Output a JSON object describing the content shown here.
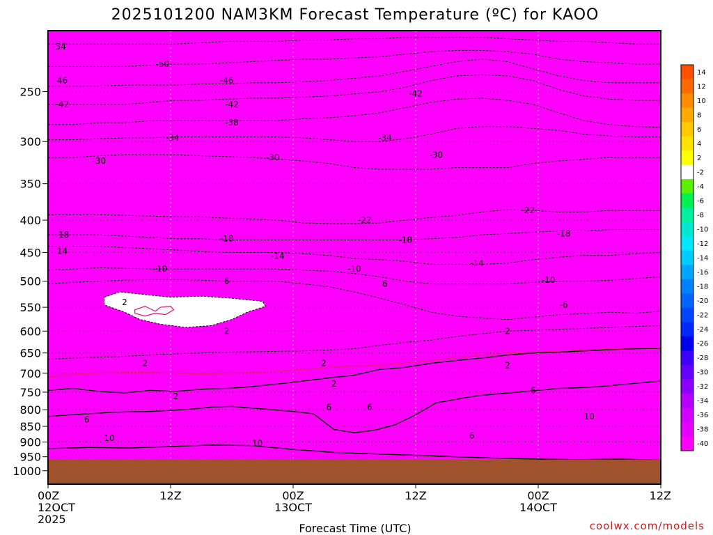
{
  "chart_data": {
    "type": "heatmap",
    "title": "2025101200 NAM3KM Forecast Temperature (ºC) for KAOO",
    "xlabel": "Forecast Time (UTC)",
    "ylabel": "",
    "credit": "coolwx.com/models",
    "x_unit": "forecast hour",
    "xlim": [
      0,
      60
    ],
    "x_ticks": [
      {
        "x": 0,
        "lines": [
          "00Z",
          "12OCT",
          "2025"
        ]
      },
      {
        "x": 12,
        "lines": [
          "12Z"
        ]
      },
      {
        "x": 24,
        "lines": [
          "00Z",
          "13OCT"
        ]
      },
      {
        "x": 36,
        "lines": [
          "12Z"
        ]
      },
      {
        "x": 48,
        "lines": [
          "00Z",
          "14OCT"
        ]
      },
      {
        "x": 60,
        "lines": [
          "12Z"
        ]
      }
    ],
    "y_unit": "hPa",
    "ylim": [
      1050,
      200
    ],
    "y_ticks": [
      250,
      300,
      350,
      400,
      450,
      500,
      550,
      600,
      650,
      700,
      750,
      800,
      850,
      900,
      950,
      1000
    ],
    "ground_level_hPa": 960,
    "colorbar": {
      "labels": [
        14,
        12,
        10,
        8,
        6,
        4,
        2,
        -2,
        -4,
        -6,
        -8,
        -10,
        -12,
        -14,
        -16,
        -18,
        -20,
        -22,
        -24,
        -26,
        -28,
        -30,
        -32,
        -34,
        -36,
        -38,
        -40
      ],
      "colors": [
        "#ff5000",
        "#ff6a00",
        "#ff8c00",
        "#ffaa00",
        "#ffc800",
        "#ffe100",
        "#ffff00",
        "#ffffff",
        "#5af000",
        "#00f050",
        "#00f0a0",
        "#00e6d2",
        "#00e6ff",
        "#00cdff",
        "#00a5ff",
        "#0082ff",
        "#0064ff",
        "#0046ff",
        "#0028ff",
        "#0000f0",
        "#3c00ff",
        "#6400ff",
        "#8c00ff",
        "#b400ff",
        "#d200ff",
        "#e600ff",
        "#ff00ff"
      ]
    },
    "isotherms": [
      {
        "t": 10,
        "p": [
          922,
          918,
          920,
          915,
          910,
          912,
          925,
          935,
          940,
          945,
          950,
          955,
          958,
          960,
          958,
          962
        ]
      },
      {
        "t": 6,
        "p": [
          820,
          815,
          812,
          808,
          806,
          805,
          802,
          798,
          792,
          790,
          795,
          800,
          805,
          812,
          860,
          870,
          862,
          845,
          815,
          780,
          770,
          760,
          755,
          750,
          745,
          740,
          738,
          735,
          730,
          725,
          720
        ]
      },
      {
        "t": 2,
        "p": [
          745,
          740,
          748,
          752,
          745,
          748,
          742,
          740,
          735,
          728,
          720,
          712,
          705,
          690,
          685,
          675,
          668,
          662,
          655,
          650,
          648,
          645,
          642,
          640,
          639
        ]
      },
      {
        "t": -2,
        "p": [
          665,
          662,
          660,
          658,
          655,
          652,
          650,
          648,
          647,
          646,
          645,
          643,
          640,
          632,
          625,
          620,
          612,
          606,
          600,
          598,
          596,
          594,
          592,
          590,
          588
        ]
      },
      {
        "t": -6,
        "p": [
          505,
          502,
          500,
          498,
          497,
          497,
          498,
          500,
          500,
          500,
          505,
          510,
          520,
          532,
          545,
          560,
          568,
          572,
          575,
          570,
          565,
          563,
          560,
          562,
          558
        ]
      },
      {
        "t": -10,
        "p": [
          480,
          478,
          476,
          477,
          478,
          478,
          478,
          478,
          478,
          478,
          480,
          482,
          486,
          492,
          500,
          505,
          505,
          505,
          505,
          502,
          500,
          500,
          498,
          495,
          492
        ]
      },
      {
        "t": -14,
        "p": [
          440,
          440,
          440,
          442,
          444,
          446,
          448,
          450,
          450,
          450,
          452,
          455,
          460,
          462,
          465,
          470,
          470,
          470,
          468,
          462,
          458,
          455,
          455,
          452,
          450
        ]
      },
      {
        "t": -18,
        "p": [
          422,
          422,
          422,
          424,
          426,
          428,
          428,
          430,
          430,
          430,
          430,
          430,
          430,
          430,
          430,
          428,
          426,
          422,
          420,
          418,
          416,
          416,
          414,
          414,
          414
        ]
      },
      {
        "t": -22,
        "p": [
          392,
          392,
          392,
          393,
          394,
          395,
          395,
          397,
          398,
          400,
          404,
          405,
          405,
          404,
          400,
          396,
          393,
          388,
          385,
          386,
          388,
          388,
          386,
          386,
          386
        ]
      },
      {
        "t": -30,
        "p": [
          318,
          318,
          316,
          315,
          315,
          315,
          316,
          317,
          318,
          320,
          322,
          325,
          330,
          332,
          332,
          332,
          330,
          330,
          330,
          325,
          322,
          320,
          318,
          318,
          318
        ]
      },
      {
        "t": -34,
        "p": [
          298,
          298,
          297,
          296,
          296,
          295,
          295,
          295,
          295,
          295,
          296,
          298,
          300,
          300,
          297,
          292,
          286,
          284,
          284,
          286,
          288,
          292,
          294,
          295,
          295
        ]
      },
      {
        "t": -38,
        "p": [
          282,
          282,
          280,
          280,
          278,
          278,
          278,
          278,
          278,
          278,
          276,
          275,
          273,
          270,
          265,
          260,
          257,
          256,
          258,
          262,
          270,
          278,
          282,
          284,
          285
        ]
      },
      {
        "t": -42,
        "p": [
          262,
          262,
          262,
          262,
          260,
          258,
          258,
          257,
          256,
          256,
          255,
          254,
          252,
          250,
          246,
          240,
          236,
          235,
          236,
          240,
          248,
          254,
          257,
          258,
          258
        ]
      },
      {
        "t": -46,
        "p": [
          245,
          245,
          245,
          244,
          244,
          244,
          243,
          243,
          242,
          242,
          241,
          240,
          238,
          236,
          232,
          228,
          224,
          222,
          224,
          230,
          236,
          240,
          242,
          242,
          242
        ]
      },
      {
        "t": -50,
        "p": [
          228,
          228,
          228,
          228,
          227,
          226,
          226,
          225,
          224,
          223,
          222,
          222,
          221,
          220,
          218,
          216,
          215,
          215,
          216,
          218,
          222,
          224,
          225,
          226,
          226
        ]
      },
      {
        "t": -54,
        "p": [
          210,
          210,
          210,
          210,
          210,
          210,
          209,
          208,
          208,
          208,
          207,
          207,
          206,
          206,
          205,
          205,
          205,
          205,
          206,
          207,
          208,
          208,
          209,
          210,
          210
        ]
      }
    ],
    "freezing_contour": [
      {
        "t": 0,
        "p": [
          710,
          702,
          700,
          698,
          698,
          700,
          702,
          700,
          698,
          695,
          690,
          685,
          682,
          680,
          675,
          668,
          662,
          655,
          650,
          648,
          646,
          642,
          640,
          638,
          638
        ]
      }
    ],
    "contour_labels": [
      {
        "x": 1.1,
        "p": 212,
        "text": "-54"
      },
      {
        "x": 11.2,
        "p": 226,
        "text": "-50"
      },
      {
        "x": 1.4,
        "p": 240,
        "text": "46"
      },
      {
        "x": 17.5,
        "p": 240,
        "text": "-46"
      },
      {
        "x": 1.4,
        "p": 262,
        "text": "-42"
      },
      {
        "x": 18,
        "p": 262,
        "text": "-42"
      },
      {
        "x": 36,
        "p": 252,
        "text": "-42"
      },
      {
        "x": 18,
        "p": 280,
        "text": "-38"
      },
      {
        "x": 12.2,
        "p": 296,
        "text": "-34"
      },
      {
        "x": 33,
        "p": 296,
        "text": "-34"
      },
      {
        "x": 5,
        "p": 322,
        "text": "-30"
      },
      {
        "x": 22,
        "p": 318,
        "text": "-30"
      },
      {
        "x": 38,
        "p": 315,
        "text": "-30"
      },
      {
        "x": 31,
        "p": 400,
        "text": "-22"
      },
      {
        "x": 47,
        "p": 386,
        "text": "-22"
      },
      {
        "x": 1.4,
        "p": 422,
        "text": "-18"
      },
      {
        "x": 17.5,
        "p": 428,
        "text": "-18"
      },
      {
        "x": 35,
        "p": 430,
        "text": "-18"
      },
      {
        "x": 50.5,
        "p": 420,
        "text": "-18"
      },
      {
        "x": 1.4,
        "p": 448,
        "text": "14"
      },
      {
        "x": 22.5,
        "p": 456,
        "text": "-14"
      },
      {
        "x": 42,
        "p": 468,
        "text": "-14"
      },
      {
        "x": 11,
        "p": 478,
        "text": "-10"
      },
      {
        "x": 30,
        "p": 478,
        "text": "-10"
      },
      {
        "x": 49,
        "p": 498,
        "text": "-10"
      },
      {
        "x": 17.5,
        "p": 500,
        "text": "6"
      },
      {
        "x": 33,
        "p": 505,
        "text": "6"
      },
      {
        "x": 50.5,
        "p": 545,
        "text": "-6"
      },
      {
        "x": 7.5,
        "p": 540,
        "text": "2"
      },
      {
        "x": 17.5,
        "p": 600,
        "text": "2"
      },
      {
        "x": 27,
        "p": 675,
        "text": "2"
      },
      {
        "x": 9.5,
        "p": 675,
        "text": "2"
      },
      {
        "x": 28,
        "p": 728,
        "text": "2"
      },
      {
        "x": 45,
        "p": 600,
        "text": "2"
      },
      {
        "x": 12.5,
        "p": 762,
        "text": "2"
      },
      {
        "x": 45,
        "p": 680,
        "text": "2"
      },
      {
        "x": 27.5,
        "p": 792,
        "text": "6"
      },
      {
        "x": 31.5,
        "p": 792,
        "text": "6"
      },
      {
        "x": 47.5,
        "p": 745,
        "text": "6"
      },
      {
        "x": 3.8,
        "p": 830,
        "text": "6"
      },
      {
        "x": 41.5,
        "p": 880,
        "text": "6"
      },
      {
        "x": 6,
        "p": 888,
        "text": "10"
      },
      {
        "x": 20.5,
        "p": 905,
        "text": "10"
      },
      {
        "x": 53,
        "p": 820,
        "text": "10"
      }
    ]
  }
}
